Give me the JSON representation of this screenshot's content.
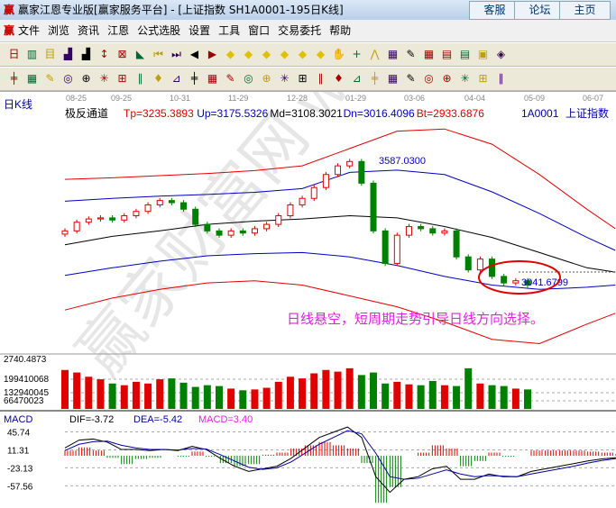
{
  "window": {
    "title": "赢家江恩专业版[赢家服务平台] - [上证指数  SH1A0001-195日K线]",
    "logo": "赢",
    "buttons": [
      "客服",
      "论坛",
      "主页"
    ]
  },
  "menu": {
    "logo": "赢",
    "items": [
      "文件",
      "浏览",
      "资讯",
      "江恩",
      "公式选股",
      "设置",
      "工具",
      "窗口",
      "交易委托",
      "帮助"
    ]
  },
  "toolbar1": [
    "day-period",
    "candle",
    "indicator",
    "volume-chart",
    "volume-chart-2",
    "bar",
    "gann-box",
    "flag",
    "first",
    "last",
    "prev",
    "next",
    "diamond-left",
    "diamond-right",
    "diamond-expand",
    "diamond-shrink",
    "diamond-up",
    "diamond-all",
    "hand",
    "crosshair",
    "trend",
    "festival",
    "wave",
    "calendar",
    "calculator",
    "notes",
    "save",
    "network"
  ],
  "toolbar2": [
    "pen",
    "lines",
    "gold",
    "gold2",
    "fib",
    "spiral",
    "marker",
    "circle-scale",
    "parallel",
    "square",
    "triangle",
    "target",
    "star-circle",
    "box",
    "speed",
    "god-line",
    "gann",
    "ruler",
    "measure",
    "rect",
    "fan",
    "box-fan",
    "square-fan",
    "angle",
    "wave-line",
    "grid",
    "grid2",
    "parallel-lines"
  ],
  "chart": {
    "period_label": "日K线",
    "dates": [
      "08-25",
      "09-25",
      "10-31",
      "11-29",
      "12-28",
      "01-29",
      "03-06",
      "04-04",
      "05-09",
      "06-07"
    ],
    "indicator_name": "极反通道",
    "indicators": [
      {
        "text": "Tp=3235.3893",
        "color": "#e00000"
      },
      {
        "text": "Up=3175.5326",
        "color": "#0000c0"
      },
      {
        "text": "Md=3108.3021",
        "color": "#000000"
      },
      {
        "text": "Dn=3016.4096",
        "color": "#0000c0"
      },
      {
        "text": "Bt=2933.6876",
        "color": "#e00000"
      }
    ],
    "code": "1A0001",
    "name": "上证指数",
    "high_label": "3587.0300",
    "low_label": "3041.6799",
    "annotation": "日线悬空，短周期走势引导日线方向选择。",
    "watermark": "赢家财富网 www.yingjia360.com",
    "colors": {
      "up": "#e00000",
      "down": "#008000",
      "band_outer": "#e00000",
      "band_inner": "#0000c0",
      "mid": "#000000",
      "annotation": "#e020e0"
    }
  },
  "chart_data": {
    "type": "candlestick",
    "price_range": [
      2740.4873,
      3800
    ],
    "closes": [
      3300,
      3340,
      3355,
      3360,
      3350,
      3370,
      3390,
      3420,
      3440,
      3430,
      3400,
      3330,
      3300,
      3280,
      3300,
      3290,
      3310,
      3330,
      3370,
      3420,
      3450,
      3500,
      3560,
      3600,
      3620,
      3520,
      3300,
      3150,
      3280,
      3320,
      3310,
      3290,
      3300,
      3180,
      3120,
      3170,
      3090,
      3060,
      3070,
      3050
    ],
    "bands": {
      "top": [
        3538,
        3545,
        3555,
        3565,
        3578,
        3600,
        3680,
        3760,
        3770,
        3700,
        3560,
        3400,
        3310
      ],
      "up": [
        3437,
        3450,
        3460,
        3468,
        3478,
        3495,
        3570,
        3580,
        3560,
        3480,
        3380,
        3270,
        3210
      ],
      "mid": [
        3236,
        3275,
        3300,
        3330,
        3345,
        3355,
        3370,
        3360,
        3320,
        3270,
        3200,
        3130,
        3110
      ],
      "dn": [
        3095,
        3130,
        3160,
        3185,
        3195,
        3200,
        3180,
        3140,
        3090,
        3050,
        3030,
        3040,
        3050
      ],
      "bottom": [
        2935,
        2990,
        3030,
        3060,
        3070,
        3050,
        3000,
        2950,
        2880,
        2800,
        2780,
        2870,
        2920
      ]
    },
    "volume": {
      "ticks": [
        "2740.4873",
        "199410068",
        "132940045",
        "66470023"
      ],
      "max": 265880090,
      "values": [
        230000000,
        215000000,
        190000000,
        175000000,
        150000000,
        140000000,
        160000000,
        150000000,
        175000000,
        180000000,
        155000000,
        130000000,
        140000000,
        135000000,
        120000000,
        110000000,
        115000000,
        125000000,
        160000000,
        190000000,
        180000000,
        210000000,
        230000000,
        220000000,
        240000000,
        200000000,
        215000000,
        150000000,
        160000000,
        145000000,
        140000000,
        165000000,
        140000000,
        135000000,
        240000000,
        150000000,
        140000000,
        135000000,
        120000000,
        115000000
      ]
    },
    "macd": {
      "label": "MACD",
      "dif_label": "DIF=-3.72",
      "dea_label": "DEA=-5.42",
      "macd_label": "MACD=3.40",
      "ticks": [
        "45.74",
        "11.31",
        "-23.13",
        "-57.56"
      ],
      "dif": [
        15,
        30,
        32,
        26,
        12,
        12,
        10,
        12,
        10,
        18,
        12,
        -5,
        -20,
        -30,
        -25,
        -20,
        -5,
        15,
        35,
        45,
        55,
        35,
        -40,
        -70,
        -45,
        -40,
        -25,
        -20,
        -45,
        -45,
        -35,
        -40,
        -40,
        -30,
        -25,
        -20,
        -15,
        -10,
        -6,
        -3.72
      ],
      "dea": [
        10,
        22,
        27,
        28,
        20,
        15,
        12,
        12,
        11,
        14,
        13,
        2,
        -10,
        -22,
        -26,
        -23,
        -12,
        5,
        22,
        35,
        48,
        42,
        5,
        -40,
        -45,
        -43,
        -35,
        -27,
        -35,
        -40,
        -38,
        -39,
        -40,
        -35,
        -30,
        -25,
        -20,
        -14,
        -9,
        -5.42
      ]
    }
  }
}
